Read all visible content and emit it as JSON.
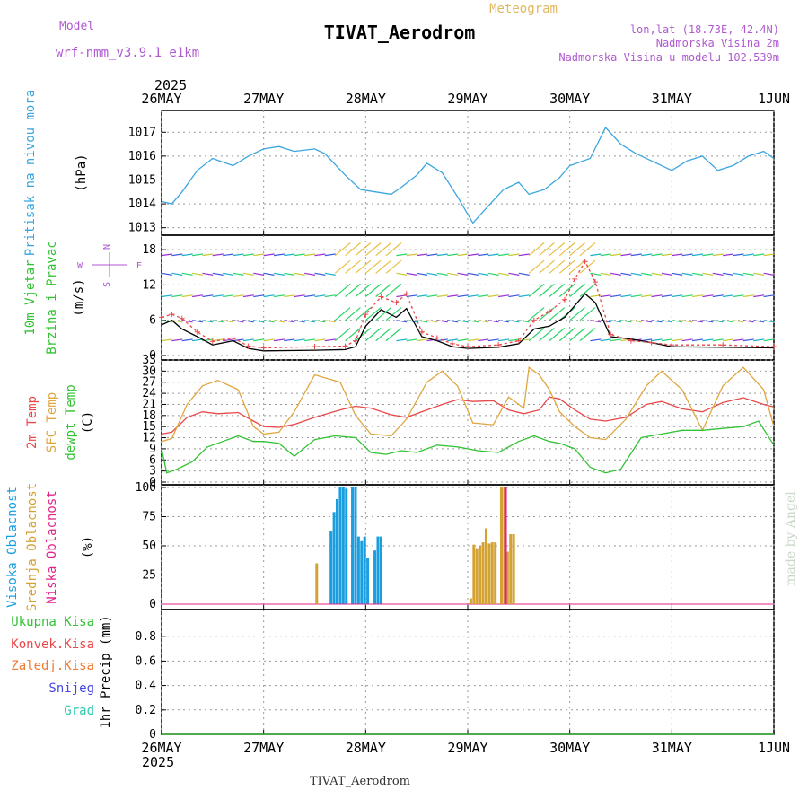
{
  "header": {
    "model_label": "Model",
    "model_name": "wrf-nmm_v3.9.1  e1km",
    "title": "TIVAT_Aerodrom",
    "subtitle": "Meteogram",
    "coords": "lon,lat (18.73E, 42.4N)",
    "elevation": "Nadmorska Visina 2m",
    "model_elevation": "Nadmorska Visina u modelu 102.539m",
    "footer_title": "TIVAT_Aerodrom",
    "watermark": "made by Angel"
  },
  "time_axis": {
    "year": "2025",
    "labels": [
      "26MAY",
      "27MAY",
      "28MAY",
      "29MAY",
      "30MAY",
      "31MAY",
      "1JUN"
    ]
  },
  "colors": {
    "pressure": "#3aa6e0",
    "temp2m": "#e8484a",
    "sfc_temp": "#e0a640",
    "dewpoint": "#33c233",
    "high_cloud": "#1a9ee0",
    "mid_cloud": "#d4a233",
    "low_cloud": "#e0238a",
    "wind_speed": "#000000",
    "wind_gust": "#e8484a"
  },
  "chart_data": [
    {
      "type": "line",
      "panel": "pressure",
      "ylabel": [
        "Pritisak na nivou mora",
        "(hPa)"
      ],
      "ylim": [
        1012.8,
        1017.8
      ],
      "yticks": [
        "1013",
        "1014",
        "1015",
        "1016",
        "1017"
      ],
      "grid": true,
      "x_unit": "days since 26MAY 00h",
      "series": [
        {
          "x": [
            0,
            0.1,
            0.2,
            0.35,
            0.5,
            0.7,
            0.85,
            1.0,
            1.15,
            1.3,
            1.5,
            1.6,
            1.8,
            1.95,
            2.1,
            2.25,
            2.35,
            2.5,
            2.6,
            2.75,
            2.9,
            3.05,
            3.2,
            3.35,
            3.5,
            3.6,
            3.75,
            3.9,
            4.0,
            4.2,
            4.35,
            4.5,
            4.65,
            4.8,
            5.0,
            5.15,
            5.3,
            5.45,
            5.6,
            5.75,
            5.9,
            6.0
          ],
          "y": [
            1014.1,
            1014.0,
            1014.5,
            1015.4,
            1015.9,
            1015.6,
            1016.0,
            1016.3,
            1016.4,
            1016.2,
            1016.3,
            1016.1,
            1015.2,
            1014.6,
            1014.5,
            1014.4,
            1014.7,
            1015.2,
            1015.7,
            1015.3,
            1014.3,
            1013.2,
            1013.9,
            1014.6,
            1014.9,
            1014.4,
            1014.6,
            1015.1,
            1015.6,
            1015.9,
            1017.2,
            1016.5,
            1016.1,
            1015.8,
            1015.4,
            1015.8,
            1016.0,
            1015.4,
            1015.6,
            1016.0,
            1016.2,
            1015.9
          ]
        }
      ]
    },
    {
      "type": "line",
      "panel": "wind",
      "ylabel": [
        "10m Vjetar",
        "Brzina i Pravac",
        "(m/s)"
      ],
      "compass": {
        "n": "N",
        "s": "S",
        "w": "W",
        "e": "E"
      },
      "ylim": [
        0,
        20
      ],
      "yticks": [
        "0",
        "6",
        "12",
        "18"
      ],
      "grid": true,
      "series": [
        {
          "x": [
            0,
            0.1,
            0.2,
            0.35,
            0.5,
            0.7,
            0.85,
            1.0,
            1.5,
            1.8,
            1.9,
            2.0,
            2.15,
            2.3,
            2.4,
            2.55,
            2.7,
            2.85,
            3.0,
            3.3,
            3.5,
            3.65,
            3.8,
            3.95,
            4.05,
            4.15,
            4.25,
            4.4,
            4.6,
            4.8,
            5.0,
            5.5,
            6.0
          ],
          "y": [
            5.2,
            6.0,
            4.5,
            3.2,
            1.8,
            2.5,
            1.2,
            0.8,
            0.9,
            1.0,
            1.5,
            5.0,
            7.8,
            6.5,
            8.0,
            3.2,
            2.5,
            1.5,
            1.2,
            1.4,
            2.0,
            4.5,
            5.0,
            6.5,
            8.5,
            10.5,
            9.0,
            3.2,
            2.8,
            2.2,
            1.5,
            1.4,
            1.3
          ]
        },
        {
          "x": [
            0,
            0.1,
            0.2,
            0.35,
            0.5,
            0.7,
            0.85,
            1.0,
            1.5,
            1.8,
            1.9,
            2.0,
            2.15,
            2.3,
            2.4,
            2.55,
            2.7,
            2.85,
            3.0,
            3.3,
            3.5,
            3.65,
            3.8,
            3.95,
            4.05,
            4.15,
            4.25,
            4.4,
            4.6,
            4.8,
            5.0,
            5.5,
            6.0
          ],
          "y": [
            6.5,
            7.0,
            6.3,
            4.0,
            2.4,
            3.0,
            1.6,
            1.3,
            1.5,
            1.6,
            2.5,
            7.0,
            10.0,
            9.0,
            10.5,
            4.0,
            3.0,
            2.0,
            1.5,
            1.8,
            2.5,
            6.0,
            7.5,
            9.5,
            13.0,
            16.0,
            12.5,
            3.6,
            2.5,
            2.2,
            1.8,
            1.8,
            1.5
          ]
        }
      ]
    },
    {
      "type": "line",
      "panel": "temperature",
      "ylabel": [
        "2m Temp",
        "SFC Temp",
        "dewpt Temp",
        "(C)"
      ],
      "ylim": [
        0,
        33
      ],
      "yticks": [
        "0",
        "3",
        "6",
        "9",
        "12",
        "15",
        "18",
        "21",
        "24",
        "27",
        "30",
        "33"
      ],
      "grid": true,
      "series": [
        {
          "name": "2m Temp",
          "x": [
            0,
            0.1,
            0.25,
            0.4,
            0.55,
            0.75,
            0.9,
            1.0,
            1.15,
            1.3,
            1.5,
            1.75,
            1.9,
            2.05,
            2.25,
            2.4,
            2.6,
            2.75,
            2.9,
            3.05,
            3.25,
            3.4,
            3.55,
            3.7,
            3.8,
            3.9,
            4.05,
            4.2,
            4.35,
            4.55,
            4.75,
            4.9,
            5.1,
            5.3,
            5.5,
            5.7,
            5.9,
            6.0
          ],
          "y": [
            13,
            13.5,
            17.5,
            19,
            18.5,
            18.8,
            16.5,
            15,
            14.8,
            15.6,
            17.5,
            19.5,
            20.5,
            20,
            18.2,
            17.5,
            19.5,
            21,
            22.3,
            21.8,
            22,
            19.5,
            18.5,
            19.5,
            23,
            22.5,
            19.5,
            17,
            16.5,
            17.5,
            21,
            21.8,
            19.8,
            19,
            21.5,
            22.8,
            21,
            20.3
          ]
        },
        {
          "name": "SFC Temp",
          "x": [
            0,
            0.1,
            0.25,
            0.4,
            0.55,
            0.75,
            0.9,
            1.0,
            1.15,
            1.3,
            1.5,
            1.75,
            1.9,
            2.05,
            2.25,
            2.4,
            2.6,
            2.75,
            2.9,
            3.05,
            3.25,
            3.4,
            3.55,
            3.6,
            3.7,
            3.8,
            3.9,
            4.05,
            4.2,
            4.35,
            4.55,
            4.75,
            4.9,
            5.1,
            5.3,
            5.5,
            5.7,
            5.9,
            6.0
          ],
          "y": [
            11,
            11.8,
            21,
            26,
            27.5,
            25,
            15,
            13,
            13.5,
            19,
            29,
            27,
            18,
            13,
            12.5,
            17,
            27,
            30,
            26,
            16,
            15.5,
            23,
            20,
            31,
            29,
            25,
            19,
            15,
            12,
            11.5,
            17,
            26,
            30,
            25,
            14,
            26,
            31,
            25,
            15
          ]
        },
        {
          "name": "dewpt Temp",
          "x": [
            0,
            0.05,
            0.15,
            0.3,
            0.45,
            0.6,
            0.75,
            0.9,
            1.0,
            1.15,
            1.3,
            1.5,
            1.7,
            1.9,
            2.05,
            2.2,
            2.35,
            2.5,
            2.7,
            2.9,
            3.1,
            3.3,
            3.5,
            3.65,
            3.8,
            3.9,
            4.05,
            4.2,
            4.35,
            4.5,
            4.7,
            4.9,
            5.1,
            5.3,
            5.5,
            5.7,
            5.85,
            6.0
          ],
          "y": [
            9,
            2.5,
            3.5,
            5.5,
            9.5,
            11,
            12.5,
            11,
            11,
            10.5,
            7,
            11.5,
            12.5,
            12,
            8,
            7.5,
            8.5,
            8,
            10,
            9.5,
            8.5,
            8,
            11,
            12.5,
            11,
            10.5,
            9,
            4,
            2.5,
            3.5,
            12,
            13,
            14,
            14,
            14.5,
            15,
            16.5,
            10
          ]
        }
      ]
    },
    {
      "type": "bar",
      "panel": "cloud",
      "ylabel": [
        "Visoka Oblacnost",
        "Srednja Oblacnost",
        "Niska Oblacnost",
        "(%)"
      ],
      "ylim": [
        0,
        100
      ],
      "yticks": [
        "0",
        "25",
        "50",
        "75",
        "100"
      ],
      "grid": true,
      "series": [
        {
          "name": "Visoka Oblacnost",
          "x": [
            1.66,
            1.69,
            1.72,
            1.75,
            1.78,
            1.81,
            1.87,
            1.9,
            1.93,
            1.96,
            1.99,
            2.02,
            2.09,
            2.12,
            2.15
          ],
          "y": [
            63,
            79,
            90,
            100,
            100,
            99,
            100,
            100,
            58,
            54,
            58,
            40,
            46,
            58,
            58
          ]
        },
        {
          "name": "Srednja Oblacnost",
          "x": [
            1.52,
            3.03,
            3.06,
            3.09,
            3.12,
            3.15,
            3.18,
            3.21,
            3.24,
            3.27,
            3.33,
            3.36,
            3.39,
            3.42,
            3.45
          ],
          "y": [
            35,
            5,
            51,
            48,
            50,
            53,
            65,
            52,
            53,
            53,
            100,
            100,
            45,
            60,
            60
          ]
        },
        {
          "name": "Niska Oblacnost",
          "x": [
            3.37
          ],
          "y": [
            100
          ]
        }
      ]
    },
    {
      "type": "line",
      "panel": "precip",
      "ylabel": [
        "Ukupna Kisa",
        "Konvek.Kisa",
        "Zaledj.Kisa",
        "Snijeg",
        "Grad",
        "1hr Precip (mm)"
      ],
      "ylim": [
        0,
        1.0
      ],
      "yticks": [
        "0",
        "0.2",
        "0.4",
        "0.6",
        "0.8"
      ],
      "grid": true,
      "series": [
        {
          "name": "Ukupna Kisa",
          "x": [
            0,
            6
          ],
          "y": [
            0,
            0
          ]
        }
      ]
    }
  ]
}
